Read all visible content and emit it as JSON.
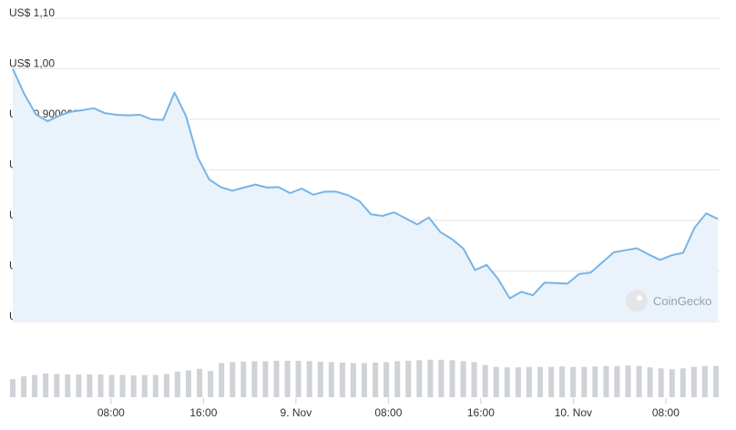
{
  "chart_data": {
    "type": "line",
    "title": "",
    "xlabel": "",
    "ylabel": "",
    "ylim": [
      0.5,
      1.1
    ],
    "y_ticks": [
      {
        "value": 1.1,
        "label": "US$ 1,10"
      },
      {
        "value": 1.0,
        "label": "US$ 1,00"
      },
      {
        "value": 0.9,
        "label": "US$ 0,900000"
      },
      {
        "value": 0.8,
        "label": "US$ 0,800000"
      },
      {
        "value": 0.7,
        "label": "US$ 0,700000"
      },
      {
        "value": 0.6,
        "label": "US$ 0,600000"
      },
      {
        "value": 0.5,
        "label": "US$ 0,500000"
      }
    ],
    "x_ticks": [
      {
        "index": 8.5,
        "label": "08:00"
      },
      {
        "index": 16.5,
        "label": "16:00"
      },
      {
        "index": 24.5,
        "label": "9. Nov"
      },
      {
        "index": 32.5,
        "label": "08:00"
      },
      {
        "index": 40.5,
        "label": "16:00"
      },
      {
        "index": 48.5,
        "label": "10. Nov"
      },
      {
        "index": 56.5,
        "label": "08:00"
      }
    ],
    "grid": true,
    "series": [
      {
        "values": [
          1.0,
          0.95,
          0.91,
          0.896,
          0.907,
          0.915,
          0.918,
          0.922,
          0.912,
          0.909,
          0.908,
          0.909,
          0.9,
          0.899,
          0.953,
          0.906,
          0.825,
          0.781,
          0.766,
          0.759,
          0.765,
          0.771,
          0.765,
          0.766,
          0.754,
          0.763,
          0.751,
          0.757,
          0.757,
          0.75,
          0.738,
          0.712,
          0.709,
          0.716,
          0.704,
          0.692,
          0.706,
          0.677,
          0.663,
          0.644,
          0.602,
          0.612,
          0.584,
          0.546,
          0.559,
          0.552,
          0.577,
          0.576,
          0.575,
          0.594,
          0.597,
          0.617,
          0.637,
          0.641,
          0.645,
          0.633,
          0.622,
          0.631,
          0.636,
          0.686,
          0.714,
          0.703
        ]
      }
    ],
    "volume": {
      "values": [
        0.38,
        0.44,
        0.47,
        0.5,
        0.49,
        0.48,
        0.48,
        0.48,
        0.48,
        0.47,
        0.47,
        0.46,
        0.47,
        0.47,
        0.49,
        0.54,
        0.57,
        0.6,
        0.55,
        0.72,
        0.74,
        0.75,
        0.76,
        0.76,
        0.77,
        0.77,
        0.77,
        0.76,
        0.75,
        0.74,
        0.73,
        0.72,
        0.72,
        0.73,
        0.74,
        0.76,
        0.77,
        0.78,
        0.79,
        0.79,
        0.78,
        0.76,
        0.74,
        0.68,
        0.64,
        0.63,
        0.63,
        0.64,
        0.64,
        0.64,
        0.65,
        0.64,
        0.64,
        0.65,
        0.66,
        0.66,
        0.67,
        0.66,
        0.63,
        0.61,
        0.59,
        0.61,
        0.64,
        0.66,
        0.66
      ]
    }
  },
  "watermark": {
    "text": "CoinGecko",
    "icon": "gecko-logo-icon"
  },
  "colors": {
    "line": "#78b4e6",
    "area": "#eaf3fb",
    "volume": "#cfd2d6",
    "grid": "#e6e6e6"
  }
}
